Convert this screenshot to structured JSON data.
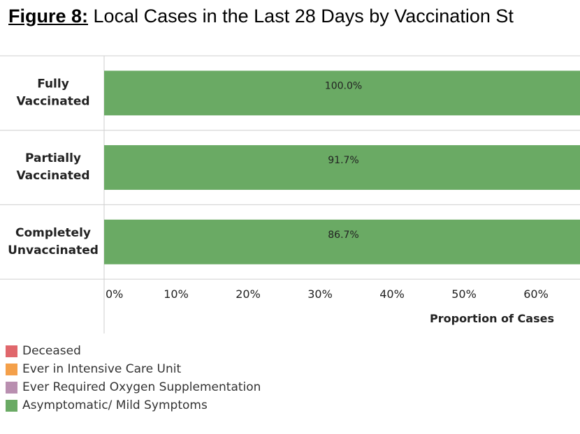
{
  "figure": {
    "label": "Figure 8:",
    "title": "Local Cases in the Last 28 Days by Vaccination St"
  },
  "chart_data": {
    "type": "bar",
    "orientation": "horizontal",
    "stacked": true,
    "categories": [
      "Fully Vaccinated",
      "Partially Vaccinated",
      "Completely Unvaccinated"
    ],
    "series": [
      {
        "name": "Asymptomatic/ Mild Symptoms",
        "color": "#6aaa64",
        "values": [
          100.0,
          91.7,
          86.7
        ],
        "labels": [
          "100.0%",
          "91.7%",
          "86.7%"
        ]
      }
    ],
    "xlabel": "Proportion of Cases",
    "xlim": [
      0,
      70
    ],
    "x_ticks": [
      "0%",
      "10%",
      "20%",
      "30%",
      "40%",
      "50%",
      "60%"
    ],
    "x_tick_values": [
      0,
      10,
      20,
      30,
      40,
      50,
      60
    ],
    "legend_position": "bottom-left",
    "grid": false
  },
  "legend": [
    {
      "label": "Deceased",
      "color": "#e0676c"
    },
    {
      "label": "Ever in Intensive Care Unit",
      "color": "#f4a04a"
    },
    {
      "label": "Ever Required Oxygen Supplementation",
      "color": "#b98fb0"
    },
    {
      "label": "Asymptomatic/ Mild Symptoms",
      "color": "#6aaa64"
    }
  ]
}
